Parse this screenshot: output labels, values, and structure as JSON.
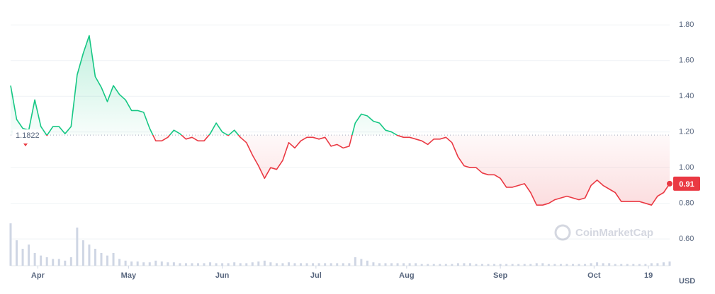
{
  "chart_data": {
    "type": "line",
    "baseline": 1.1822,
    "baseline_label": "1.1822",
    "currency": "USD",
    "watermark": "CoinMarketCap",
    "up_color": "#16c784",
    "down_color": "#ea3943",
    "grid": true,
    "xlim": [
      0,
      218
    ],
    "xticks": [
      {
        "value": 9,
        "label": "Apr"
      },
      {
        "value": 39,
        "label": "May"
      },
      {
        "value": 70,
        "label": "Jun"
      },
      {
        "value": 101,
        "label": "Jul"
      },
      {
        "value": 131,
        "label": "Aug"
      },
      {
        "value": 162,
        "label": "Sep"
      },
      {
        "value": 193,
        "label": "Oct"
      },
      {
        "value": 211,
        "label": "19"
      }
    ],
    "ylim": [
      0.45,
      1.9
    ],
    "yticks": [
      {
        "value": 0.6,
        "label": "0.60"
      },
      {
        "value": 0.8,
        "label": "0.80"
      },
      {
        "value": 1.0,
        "label": "1.00"
      },
      {
        "value": 1.2,
        "label": "1.20"
      },
      {
        "value": 1.4,
        "label": "1.40"
      },
      {
        "value": 1.6,
        "label": "1.60"
      },
      {
        "value": 1.8,
        "label": "1.80"
      }
    ],
    "x": [
      0,
      2,
      4,
      6,
      8,
      10,
      12,
      14,
      16,
      18,
      20,
      22,
      24,
      26,
      28,
      30,
      32,
      34,
      36,
      38,
      40,
      42,
      44,
      46,
      48,
      50,
      52,
      54,
      56,
      58,
      60,
      62,
      64,
      66,
      68,
      70,
      72,
      74,
      76,
      78,
      80,
      82,
      84,
      86,
      88,
      90,
      92,
      94,
      96,
      98,
      100,
      102,
      104,
      106,
      108,
      110,
      112,
      114,
      116,
      118,
      120,
      122,
      124,
      126,
      128,
      130,
      132,
      134,
      136,
      138,
      140,
      142,
      144,
      146,
      148,
      150,
      152,
      154,
      156,
      158,
      160,
      162,
      164,
      166,
      168,
      170,
      172,
      174,
      176,
      178,
      180,
      182,
      184,
      186,
      188,
      190,
      192,
      194,
      196,
      198,
      200,
      202,
      204,
      206,
      208,
      210,
      212,
      214,
      216,
      218
    ],
    "series": [
      {
        "color": "#16c784",
        "values": [
          1.46,
          1.27,
          1.22,
          1.21,
          1.38,
          1.23,
          1.18,
          1.23,
          1.23,
          1.19,
          1.23,
          1.52,
          1.64,
          1.74,
          1.51,
          1.45,
          1.37,
          1.46,
          1.41,
          1.38,
          1.32,
          1.32,
          1.31,
          1.22,
          1.15,
          1.15,
          1.17,
          1.21,
          1.19,
          1.16,
          1.17,
          1.15,
          1.15,
          1.19,
          1.25,
          1.2,
          1.18,
          1.21,
          1.17,
          1.14,
          1.07,
          1.01,
          0.94,
          1.0,
          0.99,
          1.04,
          1.14,
          1.11,
          1.15,
          1.17,
          1.17,
          1.16,
          1.17,
          1.12,
          1.13,
          1.11,
          1.12,
          1.25,
          1.3,
          1.29,
          1.26,
          1.25,
          1.21,
          1.2,
          1.18,
          1.17,
          1.17,
          1.16,
          1.15,
          1.13,
          1.16,
          1.16,
          1.17,
          1.14,
          1.06,
          1.01,
          1.0,
          1.0,
          0.97,
          0.96,
          0.96,
          0.94,
          0.89,
          0.89,
          0.9,
          0.91,
          0.86,
          0.79,
          0.79,
          0.8,
          0.82,
          0.83,
          0.84,
          0.83,
          0.82,
          0.83,
          0.9,
          0.93,
          0.9,
          0.88,
          0.86,
          0.81,
          0.81,
          0.81,
          0.81,
          0.8,
          0.79,
          0.84,
          0.86,
          0.91
        ]
      }
    ],
    "volume": {
      "color": "#cfd6e4",
      "values": [
        50,
        30,
        20,
        25,
        15,
        12,
        10,
        8,
        8,
        6,
        10,
        45,
        30,
        25,
        20,
        15,
        12,
        15,
        8,
        6,
        5,
        5,
        4,
        4,
        6,
        5,
        4,
        4,
        3,
        3,
        3,
        3,
        3,
        4,
        3,
        3,
        3,
        4,
        3,
        3,
        4,
        5,
        6,
        4,
        3,
        3,
        4,
        3,
        3,
        3,
        3,
        3,
        3,
        3,
        3,
        3,
        3,
        10,
        8,
        6,
        4,
        3,
        3,
        3,
        3,
        3,
        3,
        3,
        2,
        2,
        2,
        2,
        2,
        2,
        3,
        3,
        3,
        2,
        2,
        2,
        2,
        2,
        2,
        2,
        2,
        2,
        2,
        3,
        3,
        2,
        2,
        2,
        2,
        2,
        2,
        2,
        3,
        4,
        3,
        3,
        2,
        2,
        2,
        2,
        2,
        2,
        3,
        3,
        4,
        5
      ]
    }
  }
}
